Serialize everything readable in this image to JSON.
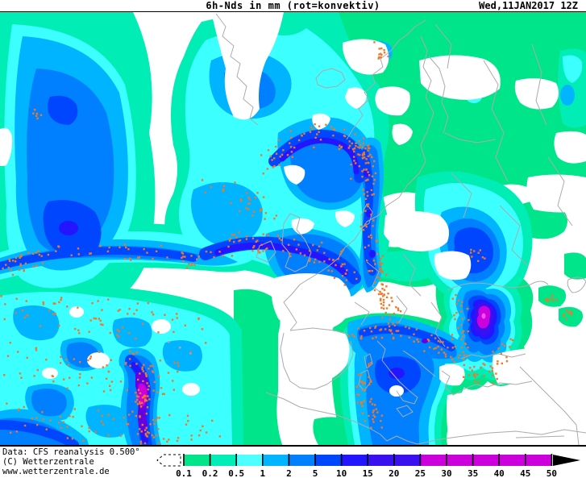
{
  "header": {
    "title": "6h-Nds in mm (rot=konvektiv)",
    "timestamp": "Wed,11JAN2017 12Z"
  },
  "credits": {
    "line1": "Data: CFS reanalysis 0.500°",
    "line2": "(C) Wetterzentrale",
    "line3": "www.wetterzentrale.de"
  },
  "legend": {
    "unit": "mm",
    "tick_labels": [
      "0.1",
      "0.2",
      "0.5",
      "1",
      "2",
      "5",
      "10",
      "15",
      "20",
      "25",
      "30",
      "35",
      "40",
      "45",
      "50"
    ],
    "segment_colors": [
      "#00E589",
      "#00EDB5",
      "#4DFFFF",
      "#00B4FF",
      "#0080FF",
      "#0046FF",
      "#2316FF",
      "#3A0FF0",
      "#3A0FF0",
      "#CC00DC",
      "#CC00DC",
      "#CC00DC",
      "#CC00DC",
      "#CC00DC"
    ],
    "overflow_color": "#000000",
    "underflow": "white-dashed-arrow"
  },
  "map": {
    "palette": {
      "L1": "#00E589",
      "L2": "#00EDB5",
      "L3": "#3CFFFF",
      "L4": "#00B4FF",
      "L5": "#0080FF",
      "L6": "#0046FF",
      "L7": "#2316FF",
      "L8": "#3A0FF0",
      "L9": "#6400E1",
      "L10": "#CC00DC",
      "L11": "#F050F0",
      "coast": "#ABABAB",
      "dots": "#F07828",
      "land": "#FFFFFF"
    },
    "convective_bands": [
      {
        "name": "iceland-arc",
        "points": [
          [
            335,
            205
          ],
          [
            370,
            170
          ],
          [
            410,
            165
          ],
          [
            445,
            180
          ],
          [
            448,
            215
          ]
        ],
        "count": 85,
        "spread": 14
      },
      {
        "name": "north-sea-comma",
        "points": [
          [
            250,
            320
          ],
          [
            300,
            297
          ],
          [
            355,
            305
          ],
          [
            410,
            317
          ],
          [
            438,
            345
          ]
        ],
        "count": 80,
        "spread": 13
      },
      {
        "name": "norway-baltic",
        "points": [
          [
            450,
            180
          ],
          [
            458,
            225
          ],
          [
            452,
            270
          ],
          [
            462,
            315
          ],
          [
            468,
            345
          ],
          [
            478,
            375
          ],
          [
            490,
            400
          ]
        ],
        "count": 110,
        "spread": 10
      },
      {
        "name": "atlantic-front",
        "points": [
          [
            2,
            333
          ],
          [
            60,
            315
          ],
          [
            130,
            312
          ],
          [
            200,
            315
          ],
          [
            245,
            322
          ]
        ],
        "count": 70,
        "spread": 11
      },
      {
        "name": "uk-west",
        "points": [
          [
            255,
            225
          ],
          [
            290,
            240
          ],
          [
            320,
            255
          ],
          [
            340,
            275
          ]
        ],
        "count": 30,
        "spread": 14
      },
      {
        "name": "ocean-field-a",
        "points": [
          [
            5,
            375
          ],
          [
            60,
            395
          ],
          [
            120,
            385
          ],
          [
            180,
            400
          ],
          [
            240,
            410
          ]
        ],
        "count": 70,
        "spread": 22
      },
      {
        "name": "ocean-field-b",
        "points": [
          [
            10,
            445
          ],
          [
            70,
            465
          ],
          [
            130,
            455
          ],
          [
            190,
            470
          ],
          [
            240,
            455
          ]
        ],
        "count": 72,
        "spread": 25
      },
      {
        "name": "ocean-field-c",
        "points": [
          [
            10,
            515
          ],
          [
            70,
            530
          ],
          [
            130,
            520
          ],
          [
            185,
            535
          ],
          [
            240,
            525
          ],
          [
            268,
            545
          ]
        ],
        "count": 70,
        "spread": 20
      },
      {
        "name": "ocean-core-band",
        "points": [
          [
            160,
            445
          ],
          [
            180,
            470
          ],
          [
            178,
            505
          ],
          [
            185,
            535
          ],
          [
            182,
            550
          ]
        ],
        "count": 60,
        "spread": 12
      },
      {
        "name": "turkey-ring",
        "points": [
          [
            560,
            360
          ],
          [
            572,
            395
          ],
          [
            566,
            430
          ],
          [
            580,
            458
          ],
          [
            600,
            468
          ],
          [
            618,
            445
          ],
          [
            628,
            415
          ]
        ],
        "count": 70,
        "spread": 10
      },
      {
        "name": "alps-balkan-band",
        "points": [
          [
            440,
            415
          ],
          [
            475,
            407
          ],
          [
            510,
            415
          ],
          [
            545,
            430
          ],
          [
            565,
            440
          ]
        ],
        "count": 60,
        "spread": 10
      },
      {
        "name": "italy-west",
        "points": [
          [
            455,
            445
          ],
          [
            448,
            475
          ],
          [
            455,
            505
          ],
          [
            468,
            525
          ]
        ],
        "count": 45,
        "spread": 10
      },
      {
        "name": "iceland-ne",
        "points": [
          [
            462,
            57
          ],
          [
            475,
            65
          ],
          [
            468,
            73
          ]
        ],
        "count": 12,
        "spread": 6
      },
      {
        "name": "nw-spot",
        "points": [
          [
            44,
            139
          ],
          [
            50,
            145
          ]
        ],
        "count": 6,
        "spread": 5
      },
      {
        "name": "east-spot",
        "points": [
          [
            588,
            311
          ],
          [
            598,
            323
          ]
        ],
        "count": 9,
        "spread": 7
      },
      {
        "name": "cyprus-a",
        "points": [
          [
            675,
            365
          ],
          [
            690,
            370
          ]
        ],
        "count": 8,
        "spread": 6
      },
      {
        "name": "cyprus-b",
        "points": [
          [
            700,
            387
          ],
          [
            712,
            393
          ]
        ],
        "count": 8,
        "spread": 6
      }
    ]
  }
}
